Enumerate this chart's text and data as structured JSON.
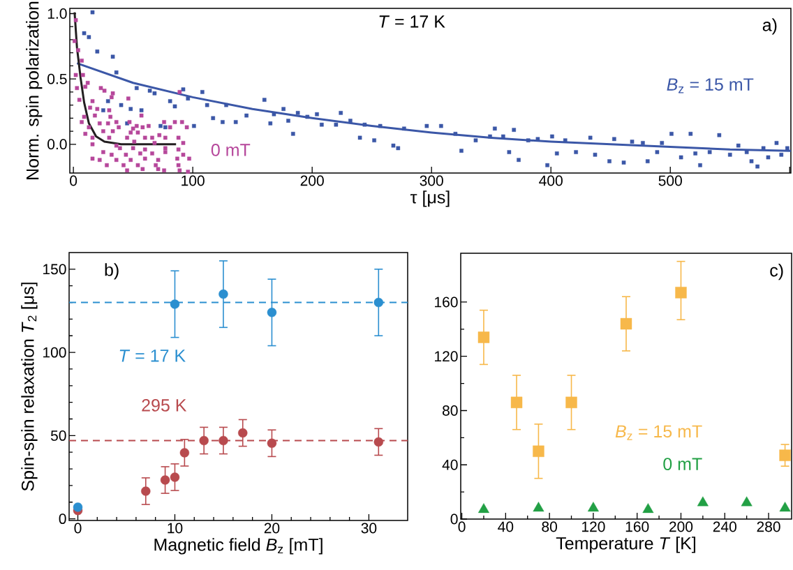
{
  "chart_data": [
    {
      "type": "scatter",
      "xlabel": "τ [μs]",
      "ylabel": "Norm. spin polarization",
      "annotations": [
        "*T* = 17 K",
        "a)"
      ],
      "xlim": [
        -3,
        601
      ],
      "ylim": [
        -0.22,
        1.04
      ],
      "xticks": [
        0,
        100,
        200,
        300,
        400,
        500,
        {
          "value": 600,
          "label": null
        }
      ],
      "yticks": [
        {
          "value": 0,
          "label": "0.0"
        },
        {
          "value": 0.5,
          "label": "0.5"
        },
        {
          "value": 1,
          "label": "1.0"
        }
      ],
      "marker": "square",
      "series": [
        {
          "name": "*B*$_{z}$ = 15 mT",
          "color": "#3b57a7",
          "x": [
            16,
            9,
            13,
            20,
            33,
            36,
            53,
            64,
            68,
            92,
            108,
            96,
            81,
            29,
            40,
            25,
            48,
            57,
            85,
            45,
            73,
            77,
            101,
            112,
            117,
            125,
            128,
            136,
            145,
            160,
            165,
            168,
            176,
            180,
            184,
            188,
            196,
            204,
            208,
            220,
            224,
            232,
            240,
            244,
            252,
            257,
            268,
            272,
            277,
            296,
            308,
            320,
            325,
            337,
            349,
            353,
            360,
            365,
            369,
            373,
            381,
            389,
            397,
            401,
            405,
            412,
            421,
            433,
            437,
            449,
            453,
            461,
            468,
            477,
            481,
            489,
            493,
            501,
            509,
            517,
            521,
            525,
            533,
            541,
            550,
            557,
            564,
            568,
            573,
            578,
            582,
            589,
            593,
            598
          ],
          "values": [
            1.01,
            0.85,
            0.82,
            0.71,
            0.67,
            0.55,
            0.43,
            0.41,
            0.39,
            0.42,
            0.4,
            0.35,
            0.33,
            0.33,
            0.3,
            0.26,
            0.27,
            0.26,
            0.29,
            0.16,
            0.14,
            0.13,
            0.14,
            0.3,
            0.2,
            0.17,
            0.3,
            0.17,
            0.22,
            0.34,
            0.16,
            0.23,
            0.27,
            0.18,
            0.08,
            0.24,
            0.21,
            0.23,
            0.15,
            0.15,
            0.24,
            0.18,
            0.05,
            0.15,
            0.03,
            0.14,
            -0.01,
            -0.03,
            0.12,
            0.14,
            0.14,
            0.08,
            -0.05,
            0.03,
            0.06,
            0.12,
            0.06,
            -0.06,
            0.11,
            -0.12,
            0.03,
            0.04,
            -0.16,
            0.06,
            -0.07,
            0.03,
            -0.06,
            0.05,
            -0.08,
            -0.13,
            0.04,
            -0.14,
            0.02,
            0.01,
            -0.13,
            -0.06,
            0.01,
            0.08,
            -0.1,
            0.08,
            -0.07,
            -0.16,
            -0.06,
            0.07,
            -0.08,
            -0.01,
            -0.06,
            -0.13,
            -0.17,
            -0.03,
            -0.1,
            0.01,
            -0.08,
            -0.03
          ]
        },
        {
          "name": "0 mT",
          "color": "#b6479b",
          "x": [
            2,
            1,
            4,
            7,
            2,
            8,
            12,
            3,
            10,
            23,
            26,
            33,
            32,
            46,
            5,
            16,
            89,
            14,
            20,
            30,
            9,
            18,
            31,
            57,
            7,
            22,
            29,
            36,
            47,
            53,
            63,
            76,
            85,
            91,
            13,
            38,
            50,
            58,
            81,
            95,
            10,
            25,
            33,
            48,
            54,
            72,
            16,
            30,
            45,
            60,
            66,
            77,
            88,
            16,
            36,
            51,
            68,
            92,
            39,
            50,
            60,
            77,
            88,
            25,
            32,
            44,
            56,
            66,
            77,
            92,
            16,
            22,
            36,
            48,
            60,
            71,
            87,
            97,
            28,
            42,
            54,
            69,
            88,
            45,
            58,
            71,
            76,
            89,
            96
          ],
          "values": [
            0.95,
            0.79,
            0.72,
            0.64,
            0.53,
            0.53,
            0.47,
            0.43,
            0.44,
            0.43,
            0.41,
            0.39,
            0.36,
            0.35,
            0.34,
            0.33,
            0.4,
            0.28,
            0.27,
            0.26,
            0.21,
            0.22,
            0.21,
            0.22,
            0.17,
            0.16,
            0.16,
            0.17,
            0.17,
            0.14,
            0.14,
            0.17,
            0.17,
            0.17,
            0.13,
            0.13,
            0.12,
            0.13,
            0.13,
            0.13,
            0.08,
            0.1,
            0.1,
            0.09,
            0.09,
            0.07,
            0.05,
            0.05,
            0.05,
            0.05,
            0.05,
            0.05,
            0.05,
            0.0,
            -0.01,
            0.02,
            0.01,
            0.01,
            -0.03,
            -0.03,
            -0.04,
            -0.03,
            -0.04,
            -0.06,
            -0.08,
            -0.08,
            -0.07,
            -0.07,
            -0.06,
            -0.08,
            -0.11,
            -0.12,
            -0.12,
            -0.12,
            -0.11,
            -0.12,
            -0.11,
            -0.11,
            -0.16,
            -0.16,
            -0.16,
            -0.16,
            -0.16,
            -0.2,
            -0.19,
            -0.19,
            -0.2,
            -0.2,
            -0.21
          ]
        },
        {
          "type": "line",
          "color": "#3b57a7",
          "marker": "none",
          "line_style": "solid",
          "x": [
            3,
            50,
            100,
            150,
            200,
            250,
            300,
            350,
            400,
            450,
            500,
            550,
            601
          ],
          "values": [
            0.62,
            0.47,
            0.36,
            0.27,
            0.2,
            0.14,
            0.09,
            0.05,
            0.02,
            0.0,
            -0.02,
            -0.04,
            -0.05
          ]
        },
        {
          "type": "line",
          "color": "#231f20",
          "marker": "none",
          "line_style": "solid",
          "x": [
            1,
            3,
            6,
            9,
            13,
            19,
            26,
            40,
            86
          ],
          "values": [
            1.01,
            0.74,
            0.51,
            0.32,
            0.16,
            0.06,
            0.02,
            0.0,
            0.0
          ]
        }
      ]
    },
    {
      "type": "scatter",
      "xlabel": "Magnetic field *B*$_{z}$ [mT]",
      "ylabel": "Spin-spin relaxation *T*$_{2}$ [μs]",
      "annotations": [
        "b)"
      ],
      "xlim": [
        -0.9,
        34
      ],
      "ylim": [
        -1,
        160
      ],
      "xticks": [
        0,
        10,
        20,
        30
      ],
      "yticks": [
        0,
        50,
        100,
        150
      ],
      "marker": "circle",
      "ref_lines": [
        {
          "axis": "y",
          "value": 130,
          "color": "#2b8fd0",
          "line_style": "dashed"
        },
        {
          "axis": "y",
          "value": 47,
          "color": "#b84a4e",
          "line_style": "dashed"
        }
      ],
      "series": [
        {
          "name": "*T* = 17 K",
          "color": "#2b8fd0",
          "x": [
            0,
            10,
            15,
            20,
            31
          ],
          "values": [
            7,
            129,
            135,
            124,
            130
          ],
          "errors": [
            null,
            20,
            20,
            20,
            20
          ]
        },
        {
          "name": "295 K",
          "color": "#b84a4e",
          "x": [
            0,
            7,
            9,
            10,
            11,
            13,
            15,
            17,
            20,
            31
          ],
          "values": [
            5,
            16.6,
            23.3,
            25,
            39.7,
            47,
            47,
            51.6,
            45.4,
            46.2
          ],
          "errors": [
            null,
            8,
            8,
            8,
            8,
            8,
            8,
            8,
            8,
            8
          ]
        }
      ]
    },
    {
      "type": "scatter",
      "xlabel": "Temperature *T* [K]",
      "annotations": [
        "c)"
      ],
      "xlim": [
        -1,
        301
      ],
      "ylim": [
        0,
        196
      ],
      "xticks": [
        0,
        40,
        80,
        120,
        160,
        200,
        240,
        280
      ],
      "yticks": [
        0,
        40,
        80,
        120,
        160
      ],
      "series": [
        {
          "name": "*B*$_{z}$ = 15 mT",
          "color": "#f7b84a",
          "marker": "square",
          "x": [
            20,
            50,
            70,
            100,
            150,
            200,
            295
          ],
          "values": [
            134,
            86,
            50,
            86,
            144,
            167,
            47
          ],
          "errors": [
            20,
            20,
            20,
            20,
            20,
            [
              147,
              190
            ],
            8
          ]
        },
        {
          "name": "0 mT",
          "color": "#22a045",
          "marker": "triangle",
          "x": [
            20,
            70,
            120,
            170,
            220,
            260,
            295
          ],
          "values": [
            7,
            8,
            8,
            7,
            12,
            12,
            8
          ]
        }
      ]
    }
  ]
}
